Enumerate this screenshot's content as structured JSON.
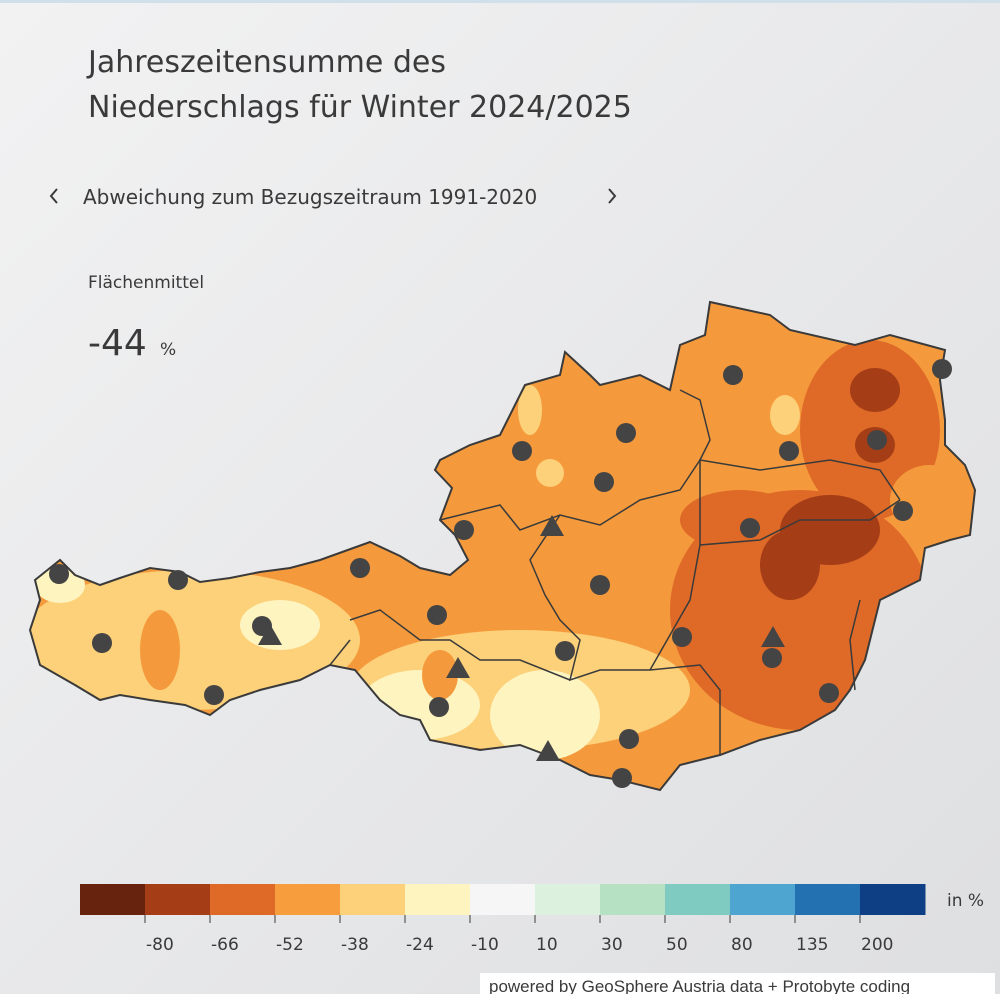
{
  "header": {
    "title_lines": [
      "Jahreszeitensumme des",
      "Niederschlags für Winter 2024/2025"
    ],
    "subtitle": "Abweichung zum Bezugszeitraum 1991-2020"
  },
  "mean": {
    "label": "Flächenmittel",
    "value": -44,
    "unit": "%"
  },
  "legend": {
    "colors": [
      "#67230e",
      "#a53d16",
      "#df6a28",
      "#f79d3e",
      "#fdd07a",
      "#fdf4c0",
      "#f6f6f6",
      "#dcf2de",
      "#b6e1c2",
      "#7fcbc1",
      "#4ea5cf",
      "#2371b0",
      "#0e3e84"
    ],
    "ticks": [
      -80,
      -66,
      -52,
      -38,
      -24,
      -10,
      10,
      30,
      50,
      80,
      135,
      200
    ],
    "unit": "in %"
  },
  "credit": "powered by GeoSphere Austria data + Protobyte coding"
}
